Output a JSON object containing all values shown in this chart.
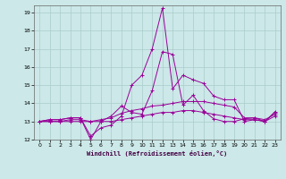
{
  "xlabel": "Windchill (Refroidissement éolien,°C)",
  "bg_color": "#cce8e8",
  "grid_color": "#aacccc",
  "line_color": "#990099",
  "xlim": [
    -0.5,
    23.5
  ],
  "ylim": [
    12,
    19.4
  ],
  "xticks": [
    0,
    1,
    2,
    3,
    4,
    5,
    6,
    7,
    8,
    9,
    10,
    11,
    12,
    13,
    14,
    15,
    16,
    17,
    18,
    19,
    20,
    21,
    22,
    23
  ],
  "yticks": [
    12,
    13,
    14,
    15,
    16,
    17,
    18,
    19
  ],
  "series": [
    [
      13.0,
      13.1,
      13.1,
      13.2,
      13.2,
      12.0,
      13.0,
      13.3,
      13.85,
      13.5,
      13.4,
      14.7,
      16.85,
      16.7,
      13.9,
      14.45,
      13.6,
      13.15,
      13.0,
      13.0,
      13.15,
      13.2,
      13.0,
      13.5
    ],
    [
      13.0,
      13.1,
      13.1,
      13.2,
      13.2,
      12.2,
      12.65,
      12.8,
      13.3,
      15.0,
      15.55,
      17.0,
      19.25,
      14.8,
      15.55,
      15.3,
      15.1,
      14.4,
      14.2,
      14.2,
      13.0,
      13.1,
      13.0,
      13.55
    ],
    [
      13.0,
      13.0,
      13.0,
      13.1,
      13.1,
      13.0,
      13.1,
      13.2,
      13.45,
      13.6,
      13.7,
      13.85,
      13.9,
      14.0,
      14.1,
      14.1,
      14.1,
      14.0,
      13.9,
      13.8,
      13.2,
      13.2,
      13.1,
      13.4
    ],
    [
      13.0,
      13.0,
      13.0,
      13.0,
      13.0,
      13.0,
      13.0,
      13.0,
      13.1,
      13.2,
      13.3,
      13.4,
      13.5,
      13.5,
      13.6,
      13.6,
      13.5,
      13.4,
      13.3,
      13.2,
      13.1,
      13.1,
      13.0,
      13.3
    ]
  ]
}
